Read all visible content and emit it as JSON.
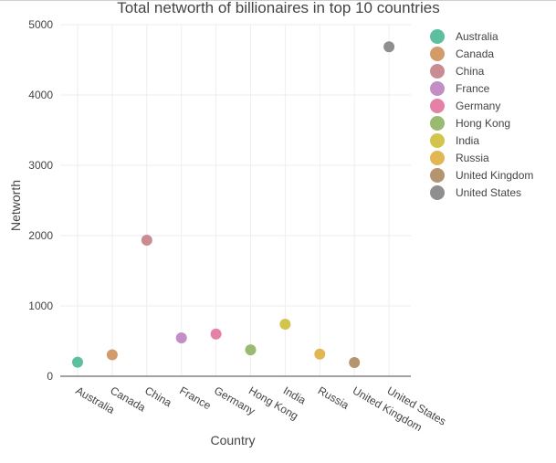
{
  "chart_data": {
    "type": "scatter",
    "title": "Total networth of billionaires in top 10 countries",
    "xlabel": "Country",
    "ylabel": "Networth",
    "ylim": [
      0,
      5000
    ],
    "yticks": [
      "0",
      "1000",
      "2000",
      "3000",
      "4000",
      "5000"
    ],
    "grid": true,
    "legend_position": "right",
    "series": [
      {
        "name": "Australia",
        "x": "Australia",
        "y": 200,
        "color": "#5cbfa0"
      },
      {
        "name": "Canada",
        "x": "Canada",
        "y": 305,
        "color": "#d39a6a"
      },
      {
        "name": "China",
        "x": "China",
        "y": 1935,
        "color": "#c98c92"
      },
      {
        "name": "France",
        "x": "France",
        "y": 545,
        "color": "#c28ec5"
      },
      {
        "name": "Germany",
        "x": "Germany",
        "y": 600,
        "color": "#e580a6"
      },
      {
        "name": "Hong Kong",
        "x": "Hong Kong",
        "y": 375,
        "color": "#99ba70"
      },
      {
        "name": "India",
        "x": "India",
        "y": 740,
        "color": "#d3c44d"
      },
      {
        "name": "Russia",
        "x": "Russia",
        "y": 315,
        "color": "#e0b752"
      },
      {
        "name": "United Kingdom",
        "x": "United Kingdom",
        "y": 195,
        "color": "#b4956f"
      },
      {
        "name": "United States",
        "x": "United States",
        "y": 4685,
        "color": "#8f8f8f"
      }
    ]
  }
}
